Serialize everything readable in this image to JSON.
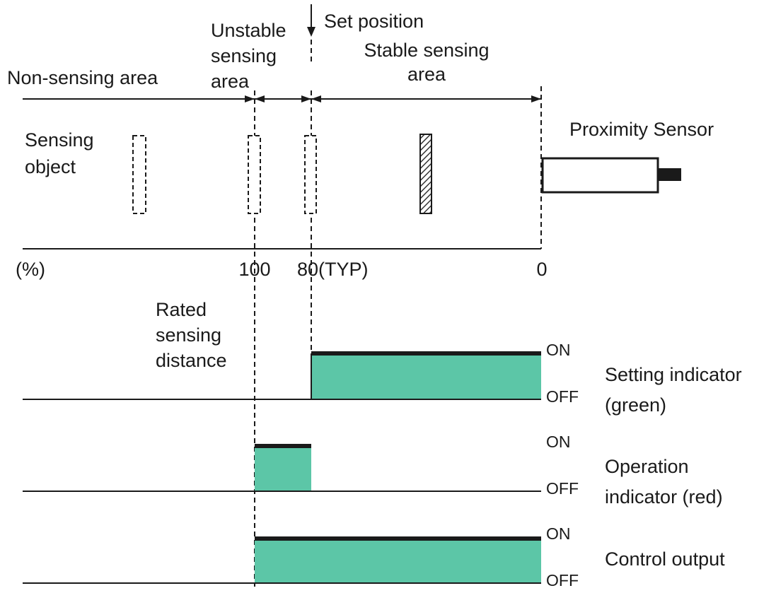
{
  "header": {
    "set_position": "Set position",
    "unstable_area": [
      "Unstable",
      "sensing",
      "area"
    ],
    "stable_area": [
      "Stable sensing",
      "area"
    ],
    "non_sensing_area": "Non-sensing area"
  },
  "objects": {
    "sensing_object": [
      "Sensing",
      "object"
    ],
    "proximity_sensor": "Proximity Sensor"
  },
  "axis": {
    "unit": "(%)",
    "rated": "100",
    "typ": "80(TYP)",
    "zero": "0"
  },
  "rated_distance": [
    "Rated",
    "sensing",
    "distance"
  ],
  "signals": [
    {
      "name": [
        "Setting indicator",
        "(green)"
      ],
      "on": "ON",
      "off": "OFF"
    },
    {
      "name": [
        "Operation",
        "indicator (red)"
      ],
      "on": "ON",
      "off": "OFF"
    },
    {
      "name": [
        "Control output"
      ],
      "on": "ON",
      "off": "OFF"
    }
  ]
}
